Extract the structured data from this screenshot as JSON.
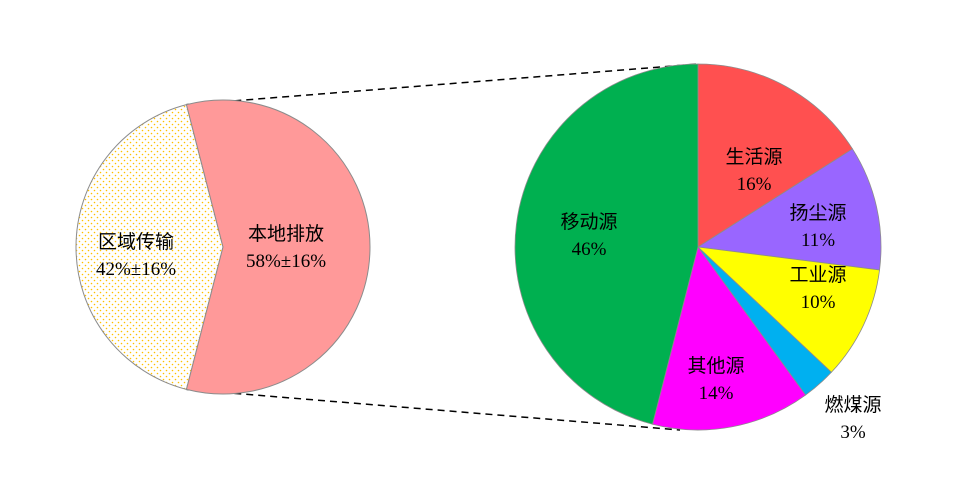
{
  "chart_data": [
    {
      "type": "pie",
      "slices": [
        {
          "label": "区域传输",
          "value": 42,
          "value_label": "42%±16%",
          "color": "#FFFFFF",
          "pattern": "dotted",
          "pattern_color": "#FFC000"
        },
        {
          "label": "本地排放",
          "value": 58,
          "value_label": "58%±16%",
          "color": "#FF9999"
        }
      ],
      "exploded_slice": "本地排放"
    },
    {
      "type": "pie",
      "start": "top",
      "direction": "clockwise",
      "slices": [
        {
          "label": "生活源",
          "value": 16,
          "value_label": "16%",
          "color": "#FF5050"
        },
        {
          "label": "扬尘源",
          "value": 11,
          "value_label": "11%",
          "color": "#9966FF"
        },
        {
          "label": "工业源",
          "value": 10,
          "value_label": "10%",
          "color": "#FFFF00"
        },
        {
          "label": "燃煤源",
          "value": 3,
          "value_label": "3%",
          "color": "#00B0F0"
        },
        {
          "label": "其他源",
          "value": 14,
          "value_label": "14%",
          "color": "#FF00FF"
        },
        {
          "label": "移动源",
          "value": 46,
          "value_label": "46%",
          "color": "#00B050"
        }
      ]
    }
  ]
}
